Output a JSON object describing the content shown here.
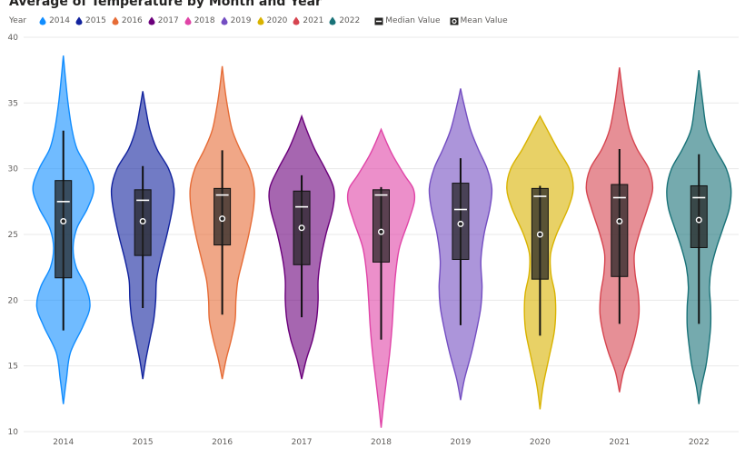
{
  "title": "Average of Temperature by Month and Year",
  "legend": {
    "title": "Year",
    "median_label": "Median Value",
    "mean_label": "Mean Value"
  },
  "chart_data": {
    "type": "violin",
    "title": "Average of Temperature by Month and Year",
    "xlabel": "",
    "ylabel": "",
    "ylim": [
      10,
      40
    ],
    "yticks": [
      10,
      15,
      20,
      25,
      30,
      35,
      40
    ],
    "grid": true,
    "legend_position": "top-left",
    "categories": [
      "2014",
      "2015",
      "2016",
      "2017",
      "2018",
      "2019",
      "2020",
      "2021",
      "2022"
    ],
    "series": [
      {
        "name": "2014",
        "color": "#118DFF",
        "min": 12.1,
        "max": 38.6,
        "whisker_low": 17.7,
        "whisker_high": 32.9,
        "q1": 21.7,
        "median": 27.5,
        "q3": 29.1,
        "mean": 26.0,
        "density": [
          [
            12.1,
            0
          ],
          [
            14,
            0.08
          ],
          [
            16,
            0.18
          ],
          [
            18,
            0.5
          ],
          [
            19.5,
            0.68
          ],
          [
            21,
            0.58
          ],
          [
            22.5,
            0.33
          ],
          [
            24,
            0.25
          ],
          [
            25.5,
            0.35
          ],
          [
            27,
            0.62
          ],
          [
            28.5,
            0.78
          ],
          [
            30,
            0.62
          ],
          [
            31.5,
            0.35
          ],
          [
            33,
            0.22
          ],
          [
            35,
            0.12
          ],
          [
            37,
            0.05
          ],
          [
            38.6,
            0
          ]
        ]
      },
      {
        "name": "2015",
        "color": "#12239E",
        "min": 14.0,
        "max": 35.9,
        "whisker_low": 19.4,
        "whisker_high": 30.2,
        "q1": 23.4,
        "median": 27.6,
        "q3": 28.4,
        "mean": 26.0,
        "density": [
          [
            14,
            0
          ],
          [
            15.5,
            0.08
          ],
          [
            17,
            0.18
          ],
          [
            18.5,
            0.28
          ],
          [
            20,
            0.33
          ],
          [
            21.5,
            0.35
          ],
          [
            23,
            0.45
          ],
          [
            25,
            0.62
          ],
          [
            27,
            0.76
          ],
          [
            28.5,
            0.8
          ],
          [
            30,
            0.66
          ],
          [
            31.5,
            0.36
          ],
          [
            33,
            0.18
          ],
          [
            34.5,
            0.08
          ],
          [
            35.9,
            0
          ]
        ]
      },
      {
        "name": "2016",
        "color": "#E66C37",
        "min": 14.0,
        "max": 37.8,
        "whisker_low": 18.9,
        "whisker_high": 31.4,
        "q1": 24.2,
        "median": 28.0,
        "q3": 28.5,
        "mean": 26.2,
        "density": [
          [
            14,
            0
          ],
          [
            15.5,
            0.1
          ],
          [
            17,
            0.23
          ],
          [
            18.5,
            0.33
          ],
          [
            20,
            0.35
          ],
          [
            21.5,
            0.4
          ],
          [
            23,
            0.52
          ],
          [
            25,
            0.68
          ],
          [
            27,
            0.8
          ],
          [
            28.5,
            0.82
          ],
          [
            30,
            0.7
          ],
          [
            31.5,
            0.45
          ],
          [
            33,
            0.25
          ],
          [
            35,
            0.12
          ],
          [
            36.5,
            0.05
          ],
          [
            37.8,
            0
          ]
        ]
      },
      {
        "name": "2017",
        "color": "#6B007B",
        "min": 14.0,
        "max": 34.0,
        "whisker_low": 18.7,
        "whisker_high": 29.5,
        "q1": 22.7,
        "median": 27.1,
        "q3": 28.3,
        "mean": 25.5,
        "density": [
          [
            14,
            0
          ],
          [
            15.5,
            0.12
          ],
          [
            17,
            0.28
          ],
          [
            18.5,
            0.38
          ],
          [
            20,
            0.42
          ],
          [
            21.5,
            0.42
          ],
          [
            23,
            0.48
          ],
          [
            25,
            0.62
          ],
          [
            27,
            0.8
          ],
          [
            28.5,
            0.82
          ],
          [
            30,
            0.6
          ],
          [
            31.5,
            0.33
          ],
          [
            33,
            0.12
          ],
          [
            34,
            0
          ]
        ]
      },
      {
        "name": "2018",
        "color": "#E044A7",
        "min": 10.3,
        "max": 33.0,
        "whisker_low": 17.0,
        "whisker_high": 28.6,
        "q1": 22.9,
        "median": 28.0,
        "q3": 28.4,
        "mean": 25.2,
        "density": [
          [
            10.3,
            0
          ],
          [
            12,
            0.06
          ],
          [
            14,
            0.14
          ],
          [
            16,
            0.22
          ],
          [
            18,
            0.28
          ],
          [
            20,
            0.32
          ],
          [
            22,
            0.37
          ],
          [
            24,
            0.47
          ],
          [
            26,
            0.7
          ],
          [
            27.5,
            0.85
          ],
          [
            28.5,
            0.82
          ],
          [
            29.5,
            0.6
          ],
          [
            31,
            0.3
          ],
          [
            32,
            0.14
          ],
          [
            33,
            0
          ]
        ]
      },
      {
        "name": "2019",
        "color": "#744EC2",
        "min": 12.4,
        "max": 36.1,
        "whisker_low": 18.1,
        "whisker_high": 30.8,
        "q1": 23.1,
        "median": 26.9,
        "q3": 28.9,
        "mean": 25.8,
        "density": [
          [
            12.4,
            0
          ],
          [
            14,
            0.1
          ],
          [
            16,
            0.28
          ],
          [
            18,
            0.43
          ],
          [
            19.5,
            0.52
          ],
          [
            21,
            0.55
          ],
          [
            23,
            0.52
          ],
          [
            25,
            0.6
          ],
          [
            27,
            0.75
          ],
          [
            28.5,
            0.8
          ],
          [
            30,
            0.68
          ],
          [
            31.5,
            0.45
          ],
          [
            33,
            0.25
          ],
          [
            35,
            0.08
          ],
          [
            36.1,
            0
          ]
        ]
      },
      {
        "name": "2020",
        "color": "#D9B300",
        "min": 11.7,
        "max": 34.0,
        "whisker_low": 17.3,
        "whisker_high": 28.7,
        "q1": 21.6,
        "median": 27.9,
        "q3": 28.5,
        "mean": 25.0,
        "density": [
          [
            11.7,
            0
          ],
          [
            13.5,
            0.08
          ],
          [
            15.5,
            0.22
          ],
          [
            17.5,
            0.36
          ],
          [
            19,
            0.4
          ],
          [
            20.5,
            0.38
          ],
          [
            22,
            0.28
          ],
          [
            23.5,
            0.27
          ],
          [
            25,
            0.42
          ],
          [
            27,
            0.72
          ],
          [
            28.5,
            0.85
          ],
          [
            30,
            0.75
          ],
          [
            31.5,
            0.45
          ],
          [
            33,
            0.18
          ],
          [
            34,
            0
          ]
        ]
      },
      {
        "name": "2021",
        "color": "#D64550",
        "min": 13.0,
        "max": 37.7,
        "whisker_low": 18.2,
        "whisker_high": 31.5,
        "q1": 21.8,
        "median": 27.8,
        "q3": 28.8,
        "mean": 26.0,
        "density": [
          [
            13,
            0
          ],
          [
            14.5,
            0.1
          ],
          [
            16,
            0.28
          ],
          [
            17.5,
            0.42
          ],
          [
            19,
            0.5
          ],
          [
            20.5,
            0.48
          ],
          [
            22,
            0.4
          ],
          [
            23.5,
            0.38
          ],
          [
            25,
            0.5
          ],
          [
            27,
            0.72
          ],
          [
            28.5,
            0.85
          ],
          [
            30,
            0.75
          ],
          [
            31.5,
            0.45
          ],
          [
            33,
            0.25
          ],
          [
            35,
            0.12
          ],
          [
            36.5,
            0.05
          ],
          [
            37.7,
            0
          ]
        ]
      },
      {
        "name": "2022",
        "color": "#197278",
        "min": 12.1,
        "max": 37.5,
        "whisker_low": 18.2,
        "whisker_high": 31.1,
        "q1": 24.0,
        "median": 27.8,
        "q3": 28.7,
        "mean": 26.1,
        "density": [
          [
            12.1,
            0
          ],
          [
            13.5,
            0.07
          ],
          [
            15,
            0.18
          ],
          [
            16.5,
            0.25
          ],
          [
            18,
            0.3
          ],
          [
            19.5,
            0.3
          ],
          [
            21,
            0.27
          ],
          [
            22.5,
            0.32
          ],
          [
            24,
            0.45
          ],
          [
            25.5,
            0.62
          ],
          [
            27,
            0.78
          ],
          [
            28.5,
            0.82
          ],
          [
            30,
            0.7
          ],
          [
            31.5,
            0.42
          ],
          [
            33,
            0.2
          ],
          [
            35,
            0.1
          ],
          [
            37.5,
            0
          ]
        ]
      }
    ]
  }
}
